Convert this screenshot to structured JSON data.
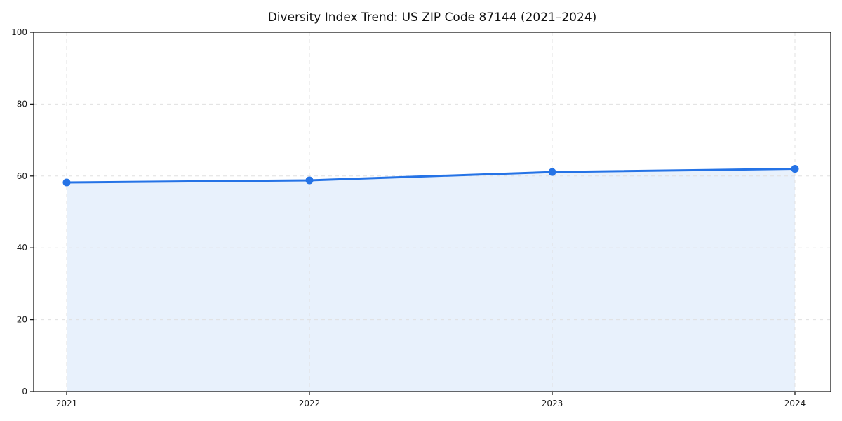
{
  "chart_data": {
    "type": "line",
    "title": "Diversity Index Trend: US ZIP Code 87144 (2021–2024)",
    "x": [
      "2021",
      "2022",
      "2023",
      "2024"
    ],
    "series": [
      {
        "name": "Diversity Index",
        "values": [
          58.2,
          58.8,
          61.1,
          62.0
        ]
      }
    ],
    "xlabel": "",
    "ylabel": "",
    "ylim": [
      0,
      100
    ],
    "yticks": [
      0,
      20,
      40,
      60,
      80,
      100
    ],
    "grid": "dashed, horizontal and vertical, light gray",
    "legend": "none",
    "marker": "circle",
    "area_fill": true,
    "colors": {
      "line": "#2573e6",
      "marker": "#2573e6",
      "area_fill": "#e8f1fc",
      "grid": "#e0e0e0",
      "spine": "#1a1a1a",
      "tick_label": "#1a1a1a",
      "title": "#111111",
      "background": "#ffffff"
    }
  }
}
